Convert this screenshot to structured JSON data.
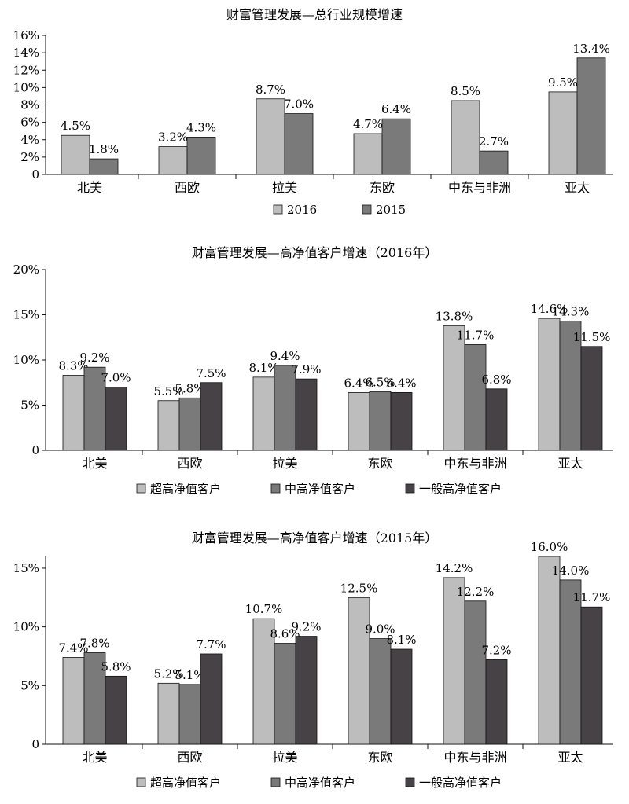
{
  "chart_data": [
    {
      "type": "bar",
      "title": "财富管理发展—总行业规模增速",
      "categories": [
        "北美",
        "西欧",
        "拉美",
        "东欧",
        "中东与非洲",
        "亚太"
      ],
      "y_ticks": [
        "0",
        "2%",
        "4%",
        "6%",
        "8%",
        "10%",
        "12%",
        "14%",
        "16%"
      ],
      "ylim": [
        0,
        16
      ],
      "legend_position": "bottom",
      "series": [
        {
          "name": "2016",
          "color": "#bdbdbd",
          "values": [
            4.5,
            3.2,
            8.7,
            4.7,
            8.5,
            9.5
          ],
          "labels": [
            "4.5%",
            "3.2%",
            "8.7%",
            "4.7%",
            "8.5%",
            "9.5%"
          ]
        },
        {
          "name": "2015",
          "color": "#7a7a7a",
          "values": [
            1.8,
            4.3,
            7.0,
            6.4,
            2.7,
            13.4
          ],
          "labels": [
            "1.8%",
            "4.3%",
            "7.0%",
            "6.4%",
            "2.7%",
            "13.4%"
          ]
        }
      ]
    },
    {
      "type": "bar",
      "title": "财富管理发展—高净值客户增速（2016年）",
      "categories": [
        "北美",
        "西欧",
        "拉美",
        "东欧",
        "中东与非洲",
        "亚太"
      ],
      "y_ticks": [
        "0",
        "5%",
        "10%",
        "15%",
        "20%"
      ],
      "ylim": [
        0,
        20
      ],
      "legend_position": "bottom",
      "series": [
        {
          "name": "超高净值客户",
          "color": "#bdbdbd",
          "values": [
            8.3,
            5.5,
            8.1,
            6.4,
            13.8,
            14.6
          ],
          "labels": [
            "8.3%",
            "5.5%",
            "8.1%",
            "6.4%",
            "13.8%",
            "14.6%"
          ]
        },
        {
          "name": "中高净值客户",
          "color": "#7a7a7a",
          "values": [
            9.2,
            5.8,
            9.4,
            6.5,
            11.7,
            14.3
          ],
          "labels": [
            "9.2%",
            "5.8%",
            "9.4%",
            "6.5%",
            "11.7%",
            "14.3%"
          ]
        },
        {
          "name": "一般高净值客户",
          "color": "#464246",
          "values": [
            7.0,
            7.5,
            7.9,
            6.4,
            6.8,
            11.5
          ],
          "labels": [
            "7.0%",
            "7.5%",
            "7.9%",
            "6.4%",
            "6.8%",
            "11.5%"
          ]
        }
      ]
    },
    {
      "type": "bar",
      "title": "财富管理发展—高净值客户增速（2015年）",
      "categories": [
        "北美",
        "西欧",
        "拉美",
        "东欧",
        "中东与非洲",
        "亚太"
      ],
      "y_ticks": [
        "0",
        "5%",
        "10%",
        "15%"
      ],
      "ylim": [
        0,
        16
      ],
      "legend_position": "bottom",
      "series": [
        {
          "name": "超高净值客户",
          "color": "#bdbdbd",
          "values": [
            7.4,
            5.2,
            10.7,
            12.5,
            14.2,
            16.0
          ],
          "labels": [
            "7.4%",
            "5.2%",
            "10.7%",
            "12.5%",
            "14.2%",
            "16.0%"
          ]
        },
        {
          "name": "中高净值客户",
          "color": "#7a7a7a",
          "values": [
            7.8,
            5.1,
            8.6,
            9.0,
            12.2,
            14.0
          ],
          "labels": [
            "7.8%",
            "5.1%",
            "8.6%",
            "9.0%",
            "12.2%",
            "14.0%"
          ]
        },
        {
          "name": "一般高净值客户",
          "color": "#464246",
          "values": [
            5.8,
            7.7,
            9.2,
            8.1,
            7.2,
            11.7
          ],
          "labels": [
            "5.8%",
            "7.7%",
            "9.2%",
            "8.1%",
            "7.2%",
            "11.7%"
          ]
        }
      ]
    }
  ]
}
